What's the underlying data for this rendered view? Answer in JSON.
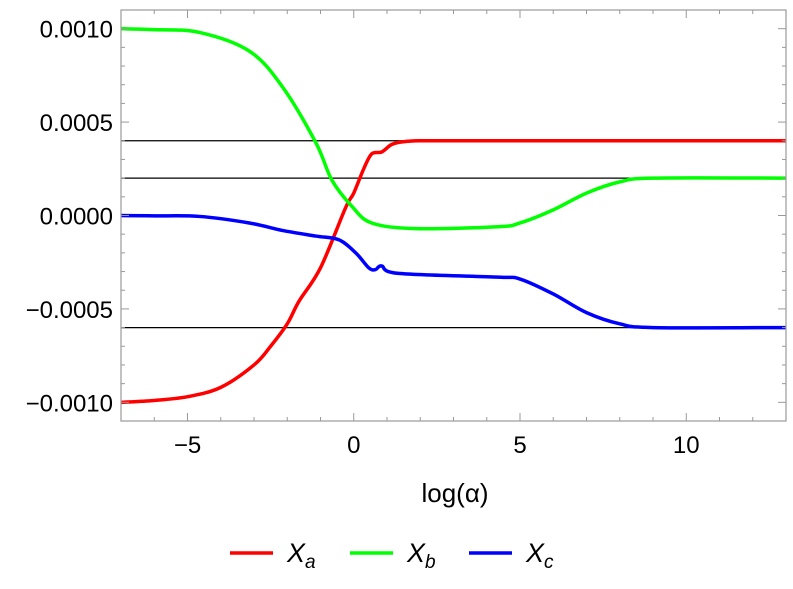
{
  "chart_data": {
    "type": "line",
    "xlabel": "log(α)",
    "ylabel": "",
    "xlim": [
      -7,
      13
    ],
    "ylim": [
      -0.0011,
      0.0011
    ],
    "x_ticks": [
      -5,
      0,
      5,
      10
    ],
    "x_tick_labels": [
      "−5",
      "0",
      "5",
      "10"
    ],
    "y_ticks": [
      0.001,
      0.0005,
      0,
      -0.0005,
      -0.001
    ],
    "y_tick_labels": [
      "0.0010",
      "0.0005",
      "0.0000",
      "−0.0005",
      "−0.0010"
    ],
    "grid": false,
    "reference_lines": [
      0.0004,
      0.0002,
      -0.0006
    ],
    "legend_position": "bottom",
    "series": [
      {
        "name": "X",
        "subscript": "a",
        "color": "#ff0000",
        "x": [
          -7,
          -6,
          -5,
          -4,
          -3,
          -2.5,
          -2,
          -1.65,
          -1,
          -0.25,
          0,
          0.3,
          0.54,
          0.84,
          1.14,
          1.5,
          1.95,
          3,
          5,
          8,
          13
        ],
        "y": [
          -0.001,
          -0.00099,
          -0.00097,
          -0.00092,
          -0.0008,
          -0.0007,
          -0.00058,
          -0.00046,
          -0.00028,
          4e-05,
          0.00012,
          0.00025,
          0.00033,
          0.00034,
          0.00038,
          0.000395,
          0.0004,
          0.0004,
          0.0004,
          0.0004,
          0.0004
        ]
      },
      {
        "name": "X",
        "subscript": "b",
        "color": "#00ff00",
        "x": [
          -7,
          -6,
          -4.64,
          -3.14,
          -2.15,
          -1.14,
          -0.66,
          -0.06,
          0.54,
          1.86,
          4.34,
          5,
          6,
          7,
          8,
          9,
          13
        ],
        "y": [
          0.001,
          0.000995,
          0.00098,
          0.00088,
          0.00069,
          0.00039,
          0.00019,
          5e-05,
          -4e-05,
          -7e-05,
          -6e-05,
          -4e-05,
          3e-05,
          0.00012,
          0.00018,
          0.0002,
          0.0002
        ]
      },
      {
        "name": "X",
        "subscript": "c",
        "color": "#0000ff",
        "x": [
          -7,
          -6,
          -4.64,
          -3.14,
          -2.15,
          -1.14,
          -0.45,
          0.06,
          0.45,
          0.65,
          0.84,
          1.35,
          4.34,
          5,
          6,
          7,
          8,
          9,
          13
        ],
        "y": [
          0,
          -2e-06,
          -5e-06,
          -4e-05,
          -8e-05,
          -0.00011,
          -0.00013,
          -0.0002,
          -0.00028,
          -0.00029,
          -0.00027,
          -0.00031,
          -0.00033,
          -0.00034,
          -0.00042,
          -0.00052,
          -0.00058,
          -0.0006,
          -0.0006
        ]
      }
    ]
  }
}
